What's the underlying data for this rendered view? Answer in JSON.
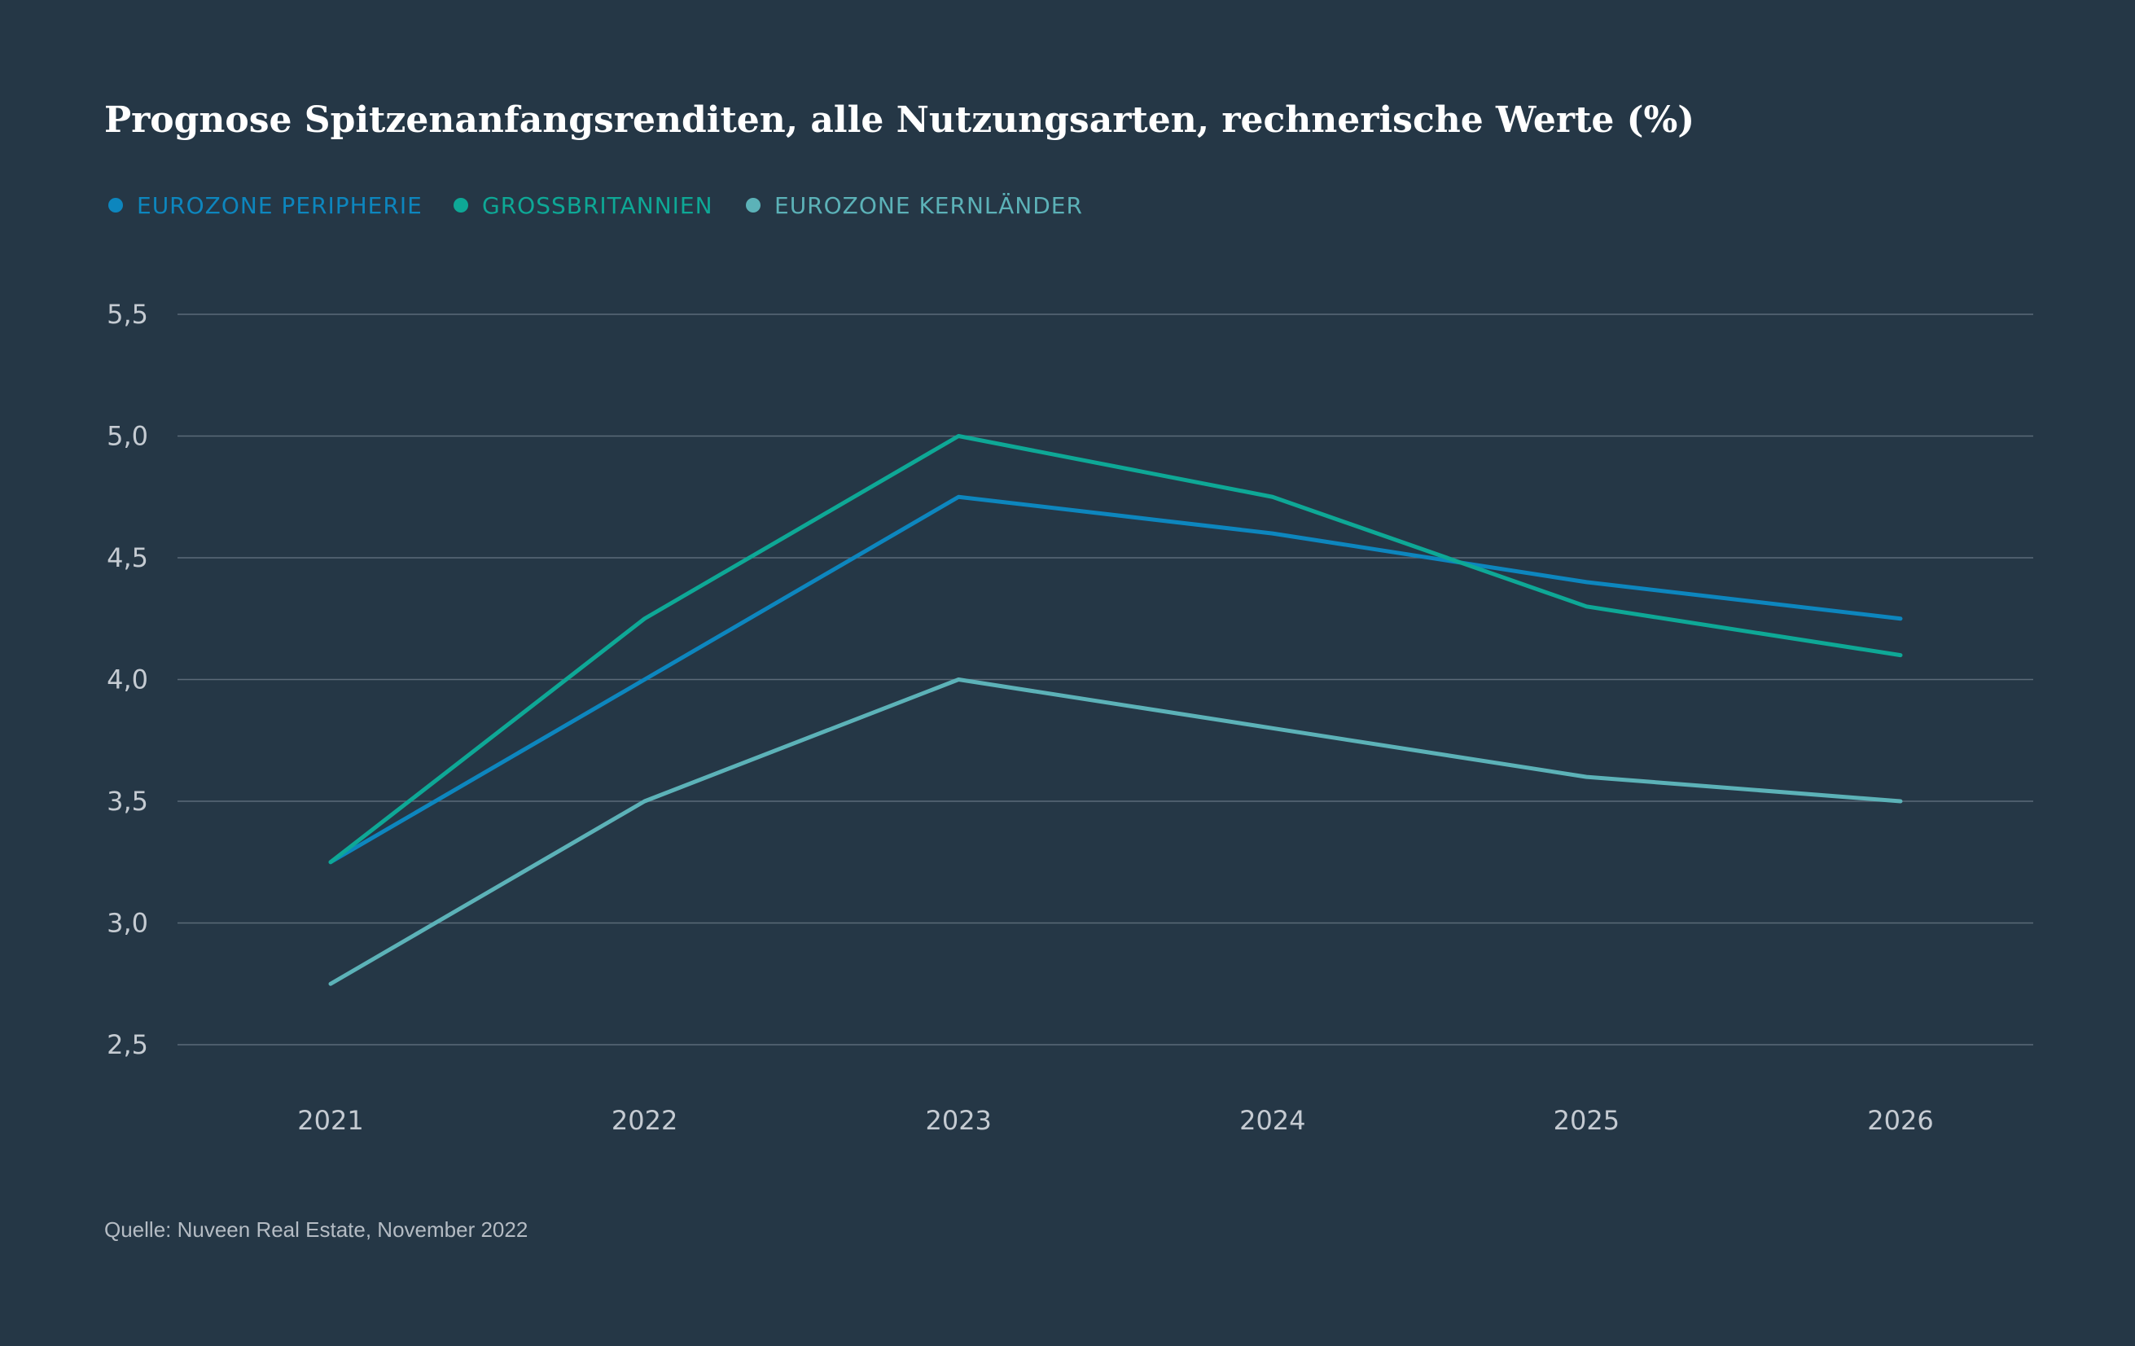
{
  "chart_data": {
    "type": "line",
    "title": "Prognose Spitzenanfangsrenditen, alle Nutzungsarten, rechnerische Werte (%)",
    "source": "Quelle: Nuveen Real Estate, November 2022",
    "x": [
      "2021",
      "2022",
      "2023",
      "2024",
      "2025",
      "2026"
    ],
    "ylim": [
      2.5,
      5.5
    ],
    "yticks": [
      2.5,
      3.0,
      3.5,
      4.0,
      4.5,
      5.0,
      5.5
    ],
    "ytick_labels": [
      "2,5",
      "3,0",
      "3,5",
      "4,0",
      "4,5",
      "5,0",
      "5,5"
    ],
    "grid": true,
    "legend_position": "top-left",
    "series": [
      {
        "name": "EUROZONE PERIPHERIE",
        "color": "#0d86be",
        "values": [
          3.25,
          4.0,
          4.75,
          4.6,
          4.4,
          4.25
        ]
      },
      {
        "name": "GROSSBRITANNIEN",
        "color": "#0ea896",
        "values": [
          3.25,
          4.25,
          5.0,
          4.75,
          4.3,
          4.1
        ]
      },
      {
        "name": "EUROZONE KERNLÄNDER",
        "color": "#5cb2b8",
        "values": [
          2.75,
          3.5,
          4.0,
          3.8,
          3.6,
          3.5
        ]
      }
    ]
  }
}
